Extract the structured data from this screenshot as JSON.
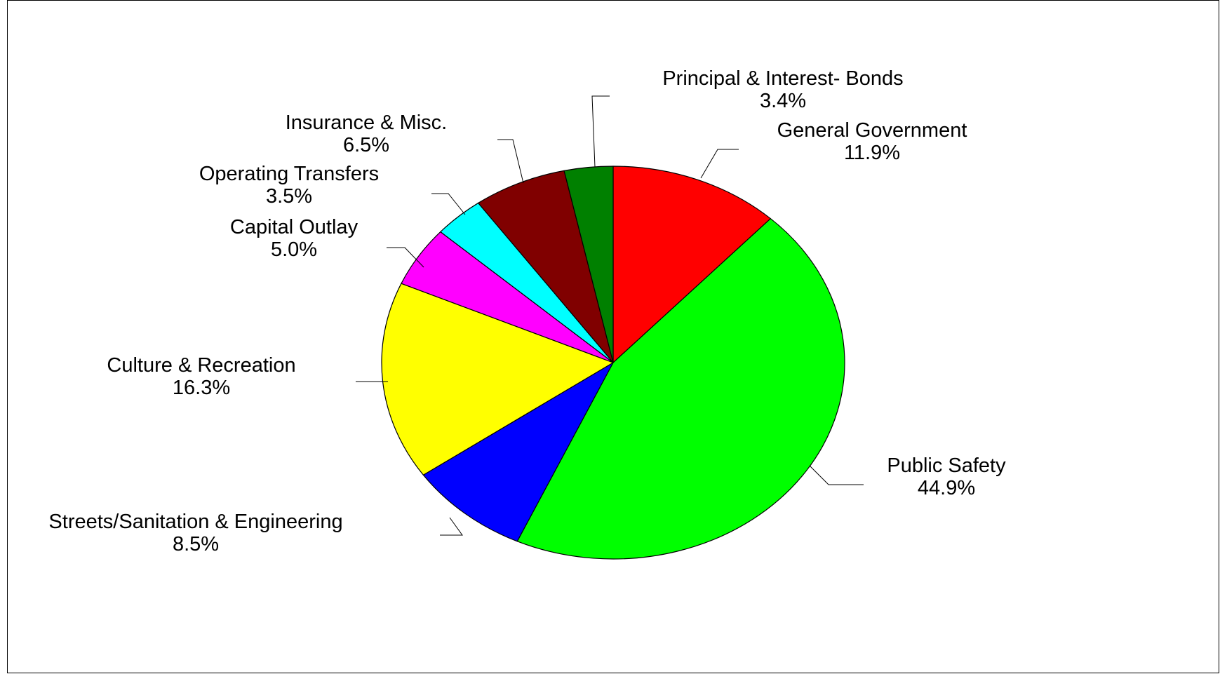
{
  "chart_data": {
    "type": "pie",
    "start_angle_deg": 0,
    "direction": "clockwise",
    "slices": [
      {
        "name": "General Government",
        "value": 11.9,
        "display": "11.9%",
        "color": "#ff0000"
      },
      {
        "name": "Public Safety",
        "value": 44.9,
        "display": "44.9%",
        "color": "#00ff00"
      },
      {
        "name": "Streets/Sanitation & Engineering",
        "value": 8.5,
        "display": "8.5%",
        "color": "#0000ff"
      },
      {
        "name": "Culture & Recreation",
        "value": 16.3,
        "display": "16.3%",
        "color": "#ffff00"
      },
      {
        "name": "Capital Outlay",
        "value": 5.0,
        "display": "5.0%",
        "color": "#ff00ff"
      },
      {
        "name": "Operating Transfers",
        "value": 3.5,
        "display": "3.5%",
        "color": "#00ffff"
      },
      {
        "name": "Insurance & Misc.",
        "value": 6.5,
        "display": "6.5%",
        "color": "#800000"
      },
      {
        "name": "Principal & Interest- Bonds",
        "value": 3.4,
        "display": "3.4%",
        "color": "#008000"
      }
    ]
  }
}
